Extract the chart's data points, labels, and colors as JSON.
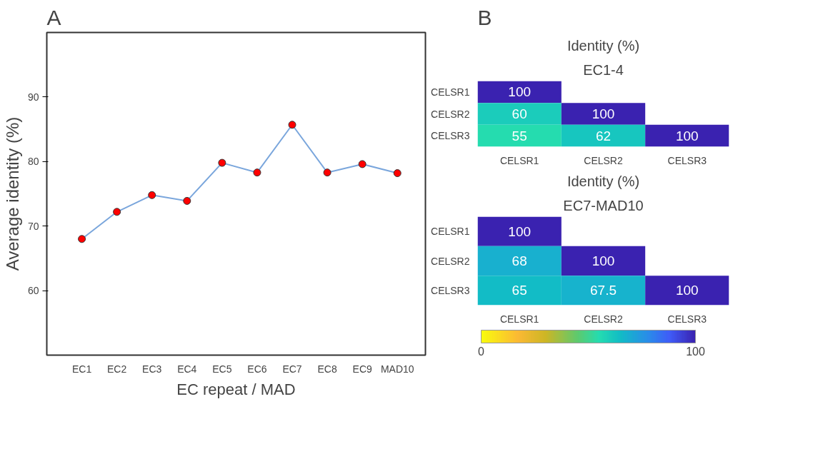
{
  "chart_data": [
    {
      "type": "line",
      "annotations": [
        "A"
      ],
      "xlabel": "EC repeat / MAD",
      "ylabel": "Average identity (%)",
      "categories": [
        "EC1",
        "EC2",
        "EC3",
        "EC4",
        "EC5",
        "EC6",
        "EC7",
        "EC8",
        "EC9",
        "MAD10"
      ],
      "series": [
        {
          "color": "#7aa6dc",
          "values": [
            68.0,
            72.2,
            74.8,
            73.9,
            79.8,
            78.3,
            85.7,
            78.3,
            79.6,
            78.2
          ]
        }
      ],
      "marker": "circle",
      "ylim": [
        50,
        100
      ],
      "yticks": [
        60,
        70,
        80,
        90
      ],
      "grid": false
    },
    {
      "type": "heatmap",
      "annotations": [
        "B"
      ],
      "title": "Identity (%)",
      "subtitle": "EC1-4",
      "categories": [
        "CELSR1",
        "CELSR2",
        "CELSR3"
      ],
      "y_categories": [
        "CELSR1",
        "CELSR2",
        "CELSR3"
      ],
      "cells": [
        [
          100,
          null,
          null
        ],
        [
          60,
          100,
          null
        ],
        [
          55,
          62,
          100
        ]
      ],
      "data_labels": true
    },
    {
      "type": "heatmap",
      "title": "Identity (%)",
      "subtitle": "EC7-MAD10",
      "categories": [
        "CELSR1",
        "CELSR2",
        "CELSR3"
      ],
      "y_categories": [
        "CELSR1",
        "CELSR2",
        "CELSR3"
      ],
      "cells": [
        [
          100,
          null,
          null
        ],
        [
          68,
          100,
          null
        ],
        [
          65,
          67.5,
          100
        ]
      ],
      "data_labels": true,
      "clim": [
        0,
        100
      ],
      "cticks": [
        0,
        100
      ]
    }
  ]
}
